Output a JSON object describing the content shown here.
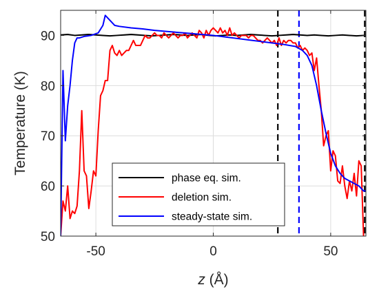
{
  "chart_data": {
    "type": "line",
    "xlabel": {
      "italic": "z",
      "unit": " (Å)"
    },
    "ylabel": "Temperature (K)",
    "xlim": [
      -65,
      65
    ],
    "ylim": [
      50,
      95
    ],
    "xticks": [
      -50,
      0,
      50
    ],
    "yticks": [
      50,
      60,
      70,
      80,
      90
    ],
    "grid": true,
    "legend": {
      "placement": "lower-center"
    },
    "colors": {
      "black": "#000000",
      "red": "#ff0000",
      "blue": "#0000ff",
      "grid": "#dcdcdc",
      "axis": "#262626"
    },
    "vlines": [
      {
        "x": 27.5,
        "color": "#000000",
        "style": "dashed"
      },
      {
        "x": 36.5,
        "color": "#0000ff",
        "style": "dashed"
      },
      {
        "x": 64.5,
        "color": "#000000",
        "style": "dashed"
      }
    ],
    "series": [
      {
        "name": "phase eq. sim.",
        "color": "#000000",
        "x": [
          -65,
          -62,
          -59,
          -56,
          -53,
          -50,
          -47,
          -44,
          -41,
          -38,
          -35,
          -32,
          -29,
          -26,
          -23,
          -20,
          -17,
          -14,
          -11,
          -8,
          -5,
          -2,
          1,
          4,
          7,
          10,
          13,
          16,
          19,
          22,
          25,
          28,
          31,
          34,
          37,
          40,
          43,
          46,
          49,
          52,
          55,
          58,
          61,
          64,
          65
        ],
        "values": [
          90.1,
          90.2,
          90.0,
          90.1,
          90.2,
          90.1,
          90.0,
          89.9,
          90.0,
          90.1,
          90.2,
          90.1,
          90.0,
          89.9,
          90.0,
          90.1,
          90.2,
          90.1,
          90.0,
          90.1,
          90.2,
          90.0,
          89.9,
          90.0,
          90.1,
          90.0,
          90.1,
          90.2,
          90.1,
          90.0,
          89.9,
          90.0,
          90.1,
          90.2,
          90.1,
          90.0,
          90.1,
          90.0,
          89.9,
          90.0,
          90.1,
          90.0,
          89.9,
          90.0,
          90.0
        ]
      },
      {
        "name": "deletion sim.",
        "color": "#ff0000",
        "x": [
          -65,
          -64,
          -63,
          -62,
          -61,
          -60,
          -59,
          -58,
          -57,
          -56,
          -55,
          -54,
          -53,
          -52,
          -51,
          -50,
          -49,
          -48,
          -47,
          -46,
          -45,
          -44,
          -43,
          -42,
          -41,
          -40,
          -39,
          -38,
          -37,
          -36,
          -35,
          -34,
          -33,
          -32,
          -31,
          -30,
          -29,
          -28,
          -27,
          -26,
          -25,
          -24,
          -23,
          -22,
          -21,
          -20,
          -19,
          -18,
          -17,
          -16,
          -15,
          -14,
          -13,
          -12,
          -11,
          -10,
          -9,
          -8,
          -7,
          -6,
          -5,
          -4,
          -3,
          -2,
          -1,
          0,
          1,
          2,
          3,
          4,
          5,
          6,
          7,
          8,
          9,
          10,
          11,
          12,
          13,
          14,
          15,
          16,
          17,
          18,
          19,
          20,
          21,
          22,
          23,
          24,
          25,
          26,
          27,
          28,
          29,
          30,
          31,
          32,
          33,
          34,
          35,
          36,
          37,
          38,
          39,
          40,
          41,
          42,
          43,
          44,
          45,
          46,
          47,
          48,
          49,
          50,
          51,
          52,
          53,
          54,
          55,
          56,
          57,
          58,
          59,
          60,
          61,
          62,
          63,
          64
        ],
        "values": [
          50,
          57,
          55,
          60,
          53.5,
          55,
          54.5,
          56,
          63,
          75,
          63,
          62,
          55.5,
          59,
          63,
          62,
          71,
          78,
          79,
          81,
          81,
          87,
          88,
          86.5,
          86,
          87,
          86,
          86.5,
          87,
          87,
          88,
          89,
          88,
          88,
          88,
          89,
          90,
          89.5,
          89.5,
          90,
          90.5,
          90,
          90,
          89.5,
          90.5,
          90,
          89.5,
          90,
          90.5,
          90,
          89.5,
          90,
          90,
          90.5,
          89.5,
          90,
          90.5,
          90,
          89.5,
          91,
          90.5,
          89.5,
          91,
          90,
          91,
          91.5,
          91,
          90.5,
          91.5,
          90.5,
          91,
          90,
          91.5,
          90,
          90.5,
          90,
          89.5,
          90,
          90,
          90,
          89.5,
          90,
          90,
          89.5,
          89,
          89,
          88.5,
          89,
          89.5,
          89,
          88.5,
          89,
          88,
          89.5,
          88,
          89,
          88.5,
          89,
          89,
          88.5,
          88.5,
          87.5,
          88,
          87,
          87.5,
          87,
          86,
          86.5,
          83,
          85.5,
          80,
          75,
          68,
          70,
          71,
          63,
          67,
          66,
          61,
          60.5,
          64,
          60,
          57.5,
          61,
          59,
          62.5,
          58,
          65,
          64,
          50
        ]
      },
      {
        "name": "steady-state sim.",
        "color": "#0000ff",
        "x": [
          -65,
          -64,
          -63,
          -62,
          -61,
          -60,
          -59,
          -58,
          -57,
          -55,
          -52,
          -49,
          -47,
          -46,
          -45,
          -44,
          -43,
          -42,
          -40,
          -35,
          -30,
          -25,
          -20,
          -15,
          -10,
          -5,
          0,
          5,
          10,
          15,
          20,
          25,
          30,
          35,
          38,
          40,
          42,
          44,
          46,
          48,
          50,
          52,
          54,
          56,
          58,
          60,
          62,
          64,
          65
        ],
        "values": [
          50,
          83,
          69,
          76,
          80,
          85,
          88.5,
          89.5,
          89.5,
          89.8,
          90,
          90.5,
          92,
          94,
          93.5,
          93,
          92.5,
          92,
          91.8,
          91.5,
          91.3,
          91,
          90.8,
          90.6,
          90.4,
          90.2,
          90,
          89.7,
          89.4,
          89.1,
          88.8,
          88.5,
          88.2,
          87.8,
          87,
          86,
          84,
          80,
          75,
          70.5,
          66.5,
          64,
          62.5,
          61.5,
          61,
          60.5,
          60,
          59,
          59
        ]
      }
    ]
  }
}
